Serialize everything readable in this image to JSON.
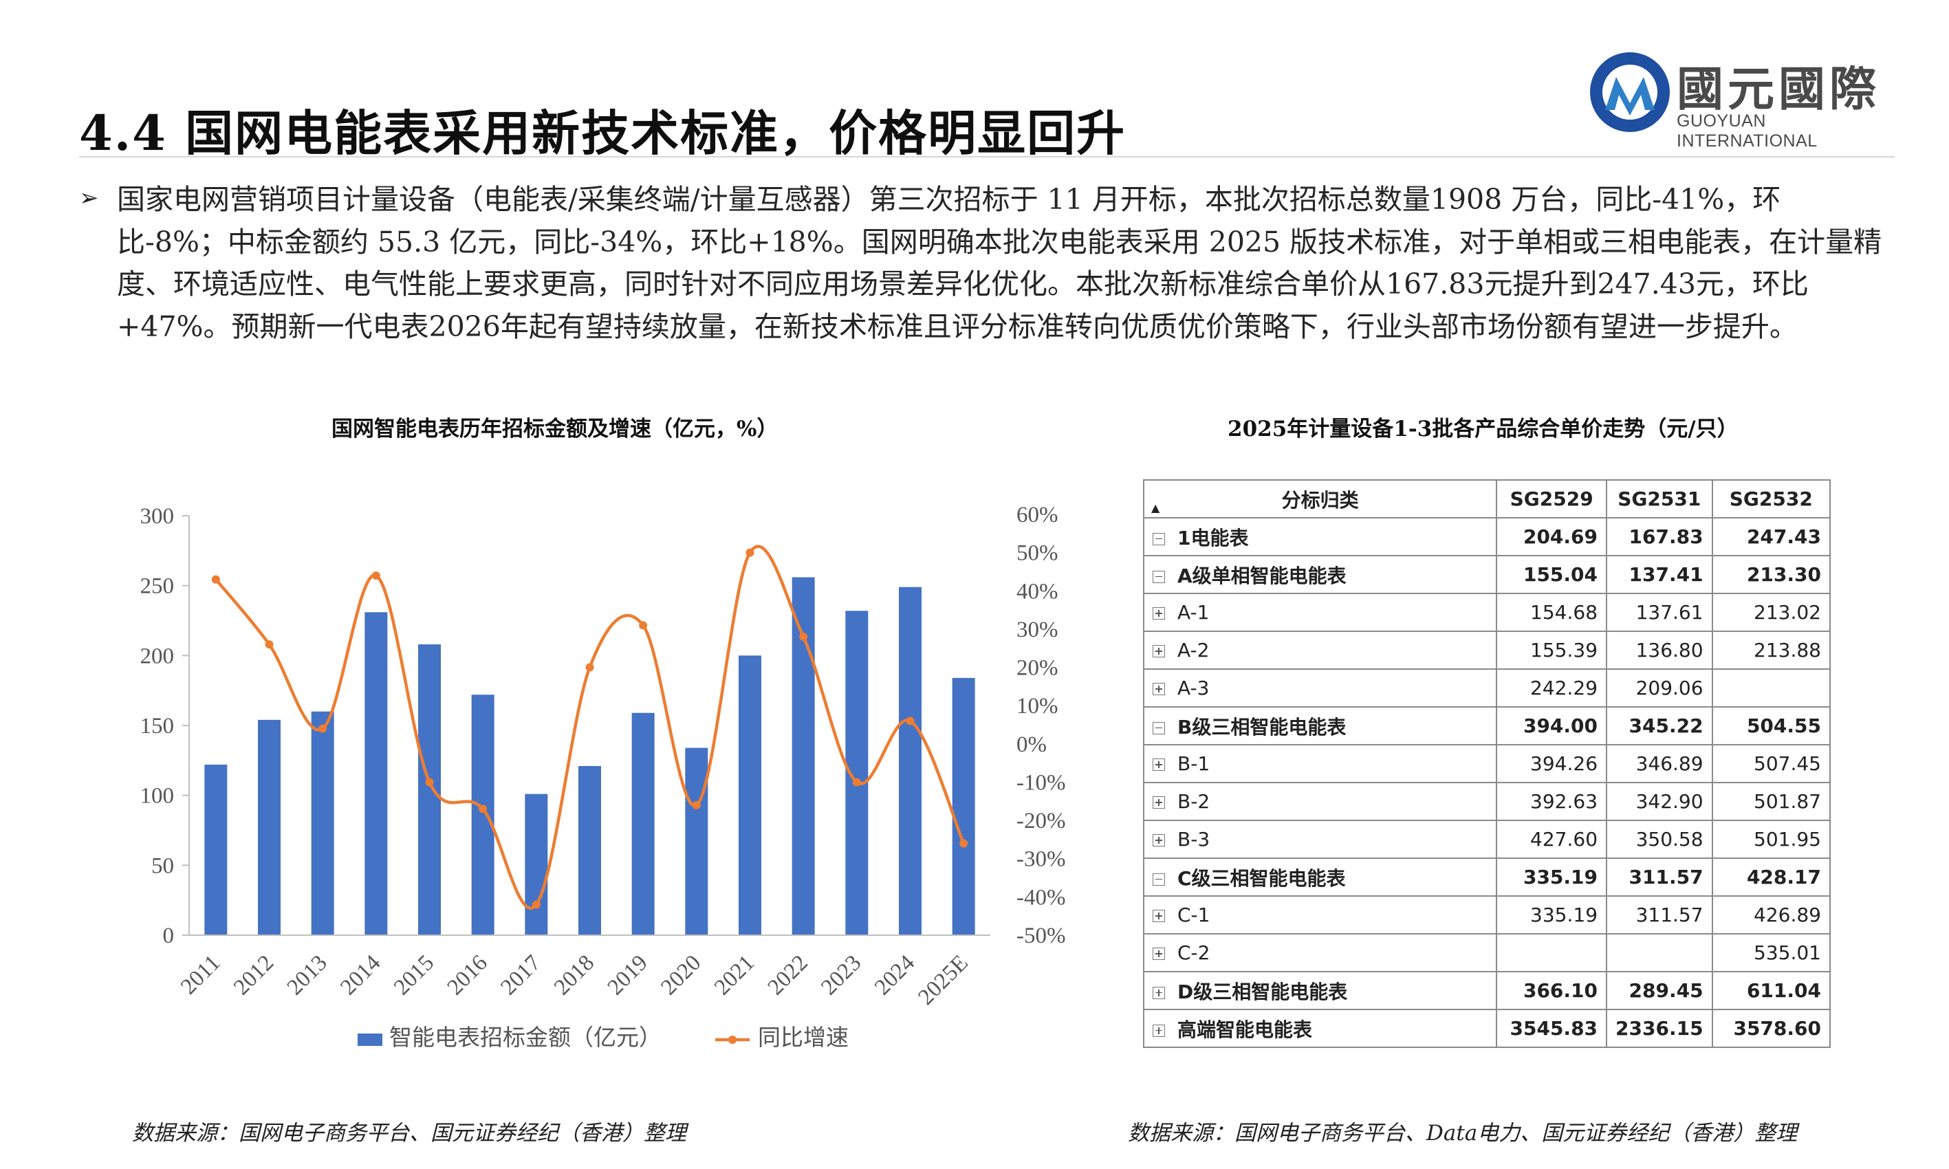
{
  "header": {
    "title": "4.4 国网电能表采用新技术标准，价格明显回升",
    "logo_cn": "國元國際",
    "logo_en": "GUOYUAN INTERNATIONAL",
    "logo_colors": [
      "#1e4fa0",
      "#2f80c8"
    ]
  },
  "paragraph": {
    "bullet": "➢",
    "text": "国家电网营销项目计量设备（电能表/采集终端/计量互感器）第三次招标于 11 月开标，本批次招标总数量1908 万台，同比-41%，环比-8%；中标金额约 55.3 亿元，同比-34%，环比+18%。国网明确本批次电能表采用 2025 版技术标准，对于单相或三相电能表，在计量精度、环境适应性、电气性能上要求更高，同时针对不同应用场景差异化优化。本批次新标准综合单价从167.83元提升到247.43元，环比+47%。预期新一代电表2026年起有望持续放量，在新技术标准且评分标准转向优质优价策略下，行业头部市场份额有望进一步提升。"
  },
  "left_chart": {
    "title": "国网智能电表历年招标金额及增速（亿元，%）",
    "source": "数据来源：国网电子商务平台、国元证券经纪（香港）整理"
  },
  "right_table": {
    "title": "2025年计量设备1-3批各产品综合单价走势（元/只）",
    "source": "数据来源：国网电子商务平台、Data电力、国元证券经纪（香港）整理",
    "headers": [
      "分标归类",
      "SG2529",
      "SG2531",
      "SG2532"
    ],
    "rows": [
      {
        "label": "1电能表",
        "level": 1,
        "toggle": "minus",
        "bold": true,
        "v": [
          "204.69",
          "167.83",
          "247.43"
        ]
      },
      {
        "label": "A级单相智能电能表",
        "level": 2,
        "toggle": "minus",
        "bold": true,
        "v": [
          "155.04",
          "137.41",
          "213.30"
        ]
      },
      {
        "label": "A-1",
        "level": 3,
        "toggle": "plus",
        "bold": false,
        "v": [
          "154.68",
          "137.61",
          "213.02"
        ]
      },
      {
        "label": "A-2",
        "level": 3,
        "toggle": "plus",
        "bold": false,
        "v": [
          "155.39",
          "136.80",
          "213.88"
        ]
      },
      {
        "label": "A-3",
        "level": 3,
        "toggle": "plus",
        "bold": false,
        "v": [
          "242.29",
          "209.06",
          ""
        ]
      },
      {
        "label": "B级三相智能电能表",
        "level": 2,
        "toggle": "minus",
        "bold": true,
        "v": [
          "394.00",
          "345.22",
          "504.55"
        ]
      },
      {
        "label": "B-1",
        "level": 3,
        "toggle": "plus",
        "bold": false,
        "v": [
          "394.26",
          "346.89",
          "507.45"
        ]
      },
      {
        "label": "B-2",
        "level": 3,
        "toggle": "plus",
        "bold": false,
        "v": [
          "392.63",
          "342.90",
          "501.87"
        ]
      },
      {
        "label": "B-3",
        "level": 3,
        "toggle": "plus",
        "bold": false,
        "v": [
          "427.60",
          "350.58",
          "501.95"
        ]
      },
      {
        "label": "C级三相智能电能表",
        "level": 2,
        "toggle": "minus",
        "bold": true,
        "v": [
          "335.19",
          "311.57",
          "428.17"
        ]
      },
      {
        "label": "C-1",
        "level": 3,
        "toggle": "plus",
        "bold": false,
        "v": [
          "335.19",
          "311.57",
          "426.89"
        ]
      },
      {
        "label": "C-2",
        "level": 3,
        "toggle": "plus",
        "bold": false,
        "v": [
          "",
          "",
          "535.01"
        ]
      },
      {
        "label": "D级三相智能电能表",
        "level": 2,
        "toggle": "plus",
        "bold": true,
        "v": [
          "366.10",
          "289.45",
          "611.04"
        ]
      },
      {
        "label": "高端智能电能表",
        "level": 2,
        "toggle": "plus",
        "bold": true,
        "v": [
          "3545.83",
          "2336.15",
          "3578.60"
        ]
      }
    ]
  },
  "chart_data": {
    "type": "bar",
    "categories": [
      "2011",
      "2012",
      "2013",
      "2014",
      "2015",
      "2016",
      "2017",
      "2018",
      "2019",
      "2020",
      "2021",
      "2022",
      "2023",
      "2024",
      "2025E"
    ],
    "series": [
      {
        "name": "智能电表招标金额（亿元）",
        "type": "bar",
        "axis": "left",
        "color": "#4472c4",
        "values": [
          122,
          154,
          160,
          231,
          208,
          172,
          101,
          121,
          159,
          134,
          200,
          256,
          232,
          249,
          184
        ]
      },
      {
        "name": "同比增速",
        "type": "line",
        "axis": "right",
        "color": "#ed7d31",
        "smooth": true,
        "values": [
          43,
          26,
          4,
          44,
          -10,
          -17,
          -42,
          20,
          31,
          -16,
          50,
          28,
          -10,
          6,
          -26
        ]
      }
    ],
    "y_left": {
      "min": 0,
      "max": 300,
      "ticks": [
        "0",
        "50",
        "100",
        "150",
        "200",
        "250",
        "300"
      ]
    },
    "y_right": {
      "min": -50,
      "max": 60,
      "ticks": [
        "-50%",
        "-40%",
        "-30%",
        "-20%",
        "-10%",
        "0%",
        "10%",
        "20%",
        "30%",
        "40%",
        "50%",
        "60%"
      ]
    },
    "grid": false,
    "legend": "bottom"
  }
}
